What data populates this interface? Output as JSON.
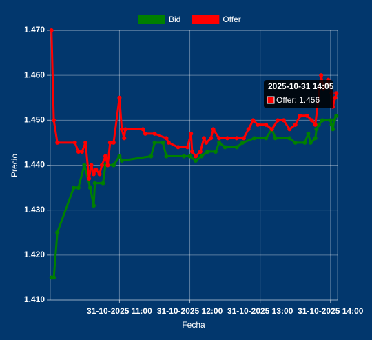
{
  "chart_data": {
    "type": "line",
    "x_label": "Fecha",
    "y_label": "Precio",
    "xlim": [
      "2025-10-31 10:01",
      "2025-10-31 14:06"
    ],
    "xticks": [
      {
        "value": "2025-10-31 11:00",
        "label": "31-10-2025 11:00"
      },
      {
        "value": "2025-10-31 12:00",
        "label": "31-10-2025 12:00"
      },
      {
        "value": "2025-10-31 13:00",
        "label": "31-10-2025 13:00"
      },
      {
        "value": "2025-10-31 14:00",
        "label": "31-10-2025 14:00"
      }
    ],
    "ylim": [
      1.41,
      1.47
    ],
    "yticks": [
      {
        "value": 1.41,
        "label": "1.410"
      },
      {
        "value": 1.42,
        "label": "1.420"
      },
      {
        "value": 1.43,
        "label": "1.430"
      },
      {
        "value": 1.44,
        "label": "1.440"
      },
      {
        "value": 1.45,
        "label": "1.450"
      },
      {
        "value": 1.46,
        "label": "1.460"
      },
      {
        "value": 1.47,
        "label": "1.470"
      }
    ],
    "grid": true,
    "legend": "top",
    "series": [
      {
        "name": "Bid",
        "color": "#008000",
        "x": [
          "2025-10-31 10:02",
          "2025-10-31 10:04",
          "2025-10-31 10:07",
          "2025-10-31 10:21",
          "2025-10-31 10:25",
          "2025-10-31 10:30",
          "2025-10-31 10:35",
          "2025-10-31 10:38",
          "2025-10-31 10:39",
          "2025-10-31 10:46",
          "2025-10-31 10:48",
          "2025-10-31 10:55",
          "2025-10-31 11:00",
          "2025-10-31 11:02",
          "2025-10-31 11:27",
          "2025-10-31 11:30",
          "2025-10-31 11:37",
          "2025-10-31 11:40",
          "2025-10-31 11:55",
          "2025-10-31 12:00",
          "2025-10-31 12:05",
          "2025-10-31 12:10",
          "2025-10-31 12:15",
          "2025-10-31 12:22",
          "2025-10-31 12:25",
          "2025-10-31 12:30",
          "2025-10-31 12:40",
          "2025-10-31 12:45",
          "2025-10-31 12:55",
          "2025-10-31 13:05",
          "2025-10-31 13:10",
          "2025-10-31 13:13",
          "2025-10-31 13:25",
          "2025-10-31 13:30",
          "2025-10-31 13:38",
          "2025-10-31 13:41",
          "2025-10-31 13:43",
          "2025-10-31 13:47",
          "2025-10-31 13:48",
          "2025-10-31 13:50",
          "2025-10-31 13:53",
          "2025-10-31 14:00",
          "2025-10-31 14:01",
          "2025-10-31 14:02",
          "2025-10-31 14:03",
          "2025-10-31 14:05"
        ],
        "values": [
          1.415,
          1.415,
          1.425,
          1.435,
          1.435,
          1.44,
          1.435,
          1.431,
          1.436,
          1.436,
          1.44,
          1.44,
          1.442,
          1.441,
          1.442,
          1.445,
          1.445,
          1.442,
          1.442,
          1.442,
          1.441,
          1.442,
          1.443,
          1.443,
          1.445,
          1.444,
          1.444,
          1.445,
          1.446,
          1.446,
          1.448,
          1.446,
          1.446,
          1.445,
          1.445,
          1.447,
          1.445,
          1.446,
          1.448,
          1.449,
          1.45,
          1.45,
          1.449,
          1.448,
          1.45,
          1.451
        ]
      },
      {
        "name": "Offer",
        "color": "#ff0000",
        "x": [
          "2025-10-31 10:02",
          "2025-10-31 10:04",
          "2025-10-31 10:07",
          "2025-10-31 10:22",
          "2025-10-31 10:25",
          "2025-10-31 10:28",
          "2025-10-31 10:31",
          "2025-10-31 10:34",
          "2025-10-31 10:36",
          "2025-10-31 10:38",
          "2025-10-31 10:40",
          "2025-10-31 10:43",
          "2025-10-31 10:45",
          "2025-10-31 10:48",
          "2025-10-31 10:50",
          "2025-10-31 10:52",
          "2025-10-31 10:55",
          "2025-10-31 11:00",
          "2025-10-31 11:02",
          "2025-10-31 11:04",
          "2025-10-31 11:05",
          "2025-10-31 11:20",
          "2025-10-31 11:22",
          "2025-10-31 11:30",
          "2025-10-31 11:40",
          "2025-10-31 11:42",
          "2025-10-31 11:50",
          "2025-10-31 11:58",
          "2025-10-31 12:01",
          "2025-10-31 12:02",
          "2025-10-31 12:05",
          "2025-10-31 12:09",
          "2025-10-31 12:12",
          "2025-10-31 12:14",
          "2025-10-31 12:18",
          "2025-10-31 12:20",
          "2025-10-31 12:25",
          "2025-10-31 12:32",
          "2025-10-31 12:40",
          "2025-10-31 12:46",
          "2025-10-31 12:50",
          "2025-10-31 12:54",
          "2025-10-31 12:58",
          "2025-10-31 13:05",
          "2025-10-31 13:10",
          "2025-10-31 13:15",
          "2025-10-31 13:20",
          "2025-10-31 13:25",
          "2025-10-31 13:30",
          "2025-10-31 13:34",
          "2025-10-31 13:40",
          "2025-10-31 13:44",
          "2025-10-31 13:47",
          "2025-10-31 13:52",
          "2025-10-31 13:54",
          "2025-10-31 13:58",
          "2025-10-31 14:01",
          "2025-10-31 14:02",
          "2025-10-31 14:04",
          "2025-10-31 14:05"
        ],
        "values": [
          1.47,
          1.45,
          1.445,
          1.445,
          1.443,
          1.443,
          1.445,
          1.437,
          1.44,
          1.438,
          1.439,
          1.438,
          1.44,
          1.442,
          1.44,
          1.445,
          1.445,
          1.455,
          1.448,
          1.446,
          1.448,
          1.448,
          1.447,
          1.447,
          1.446,
          1.445,
          1.444,
          1.444,
          1.447,
          1.443,
          1.442,
          1.443,
          1.446,
          1.445,
          1.446,
          1.448,
          1.446,
          1.446,
          1.446,
          1.446,
          1.448,
          1.45,
          1.449,
          1.449,
          1.448,
          1.45,
          1.45,
          1.448,
          1.449,
          1.451,
          1.451,
          1.45,
          1.449,
          1.46,
          1.457,
          1.459,
          1.456,
          1.453,
          1.455,
          1.456
        ]
      }
    ],
    "tooltip": {
      "title": "2025-10-31 14:05",
      "label": "Offer: 1.456"
    }
  }
}
